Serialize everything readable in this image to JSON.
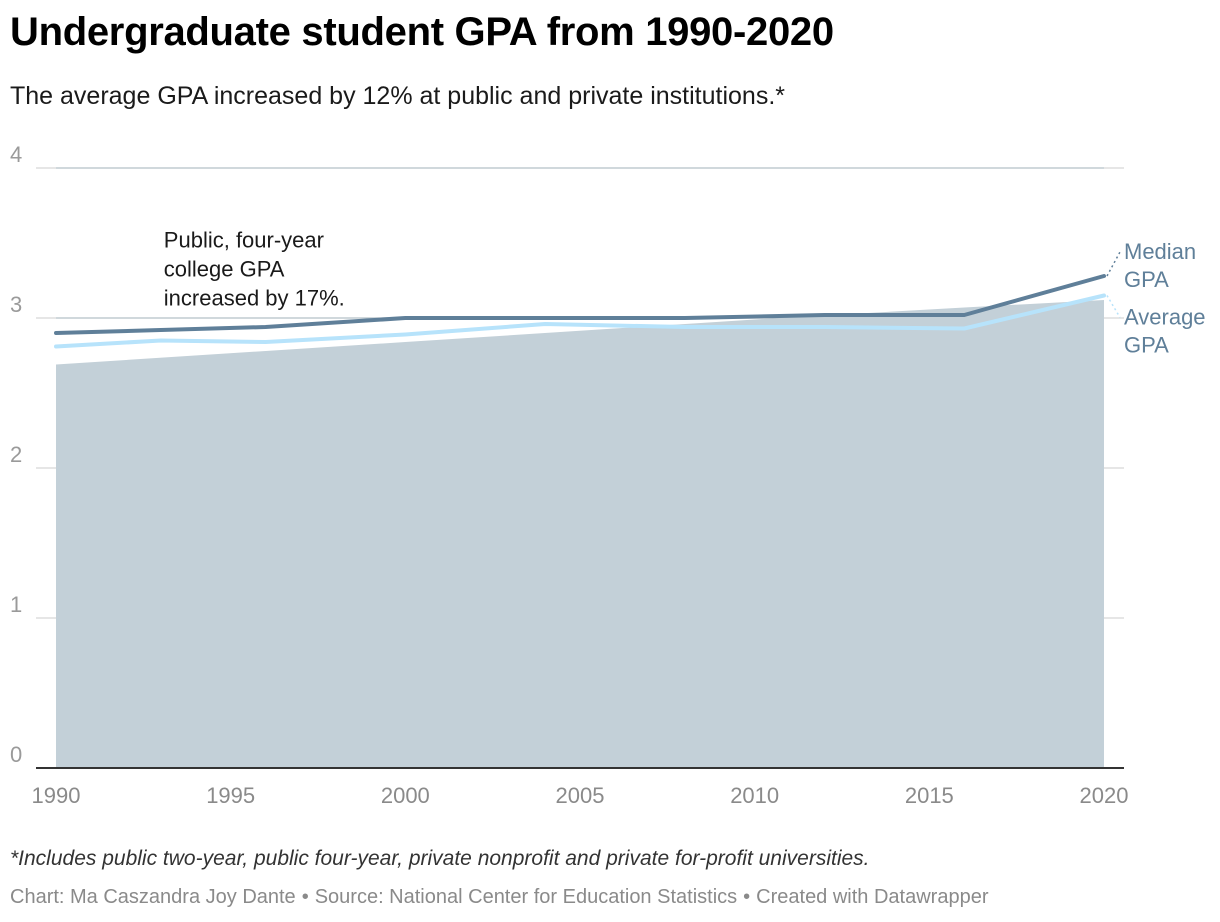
{
  "header": {
    "title": "Undergraduate student GPA from 1990-2020",
    "subtitle": "The average GPA increased by 12% at public and private institutions.*"
  },
  "footer": {
    "note": "*Includes public two-year, public four-year, private nonprofit and private for-profit universities.",
    "chart_credit": "Chart: Ma Caszandra Joy Dante",
    "separator": "•",
    "source": "Source: National Center for Education Statistics",
    "created_with": "Created with Datawrapper"
  },
  "chart_data": {
    "type": "line",
    "title": "Undergraduate student GPA from 1990-2020",
    "xlabel": "",
    "ylabel": "",
    "xlim": [
      1990,
      2020
    ],
    "ylim": [
      0,
      4
    ],
    "x_ticks": [
      "1990",
      "1995",
      "2000",
      "2005",
      "2010",
      "2015",
      "2020"
    ],
    "y_ticks": [
      "0",
      "1",
      "2",
      "3",
      "4"
    ],
    "grid": true,
    "area": {
      "label": "",
      "color": "#c3d0d8",
      "points": [
        [
          1990,
          2.69
        ],
        [
          2000,
          2.84
        ],
        [
          2010,
          2.99
        ],
        [
          2016,
          3.07
        ],
        [
          2020,
          3.12
        ]
      ]
    },
    "series": [
      {
        "name": "Median GPA",
        "label_lines": [
          "Median",
          "GPA"
        ],
        "color": "#5f7f99",
        "points": [
          [
            1990,
            2.9
          ],
          [
            1993,
            2.92
          ],
          [
            1996,
            2.94
          ],
          [
            2000,
            3.0
          ],
          [
            2004,
            3.0
          ],
          [
            2008,
            3.0
          ],
          [
            2012,
            3.02
          ],
          [
            2016,
            3.02
          ],
          [
            2020,
            3.28
          ]
        ]
      },
      {
        "name": "Average GPA",
        "label_lines": [
          "Average",
          "GPA"
        ],
        "color": "#b7e3fb",
        "points": [
          [
            1990,
            2.81
          ],
          [
            1993,
            2.85
          ],
          [
            1996,
            2.84
          ],
          [
            2000,
            2.89
          ],
          [
            2004,
            2.96
          ],
          [
            2008,
            2.94
          ],
          [
            2012,
            2.94
          ],
          [
            2016,
            2.93
          ],
          [
            2020,
            3.15
          ]
        ]
      }
    ],
    "annotations": [
      {
        "lines": [
          "Public, four-year",
          "college GPA",
          "increased by 17%."
        ],
        "x": 1993,
        "y": 3.47
      }
    ]
  }
}
